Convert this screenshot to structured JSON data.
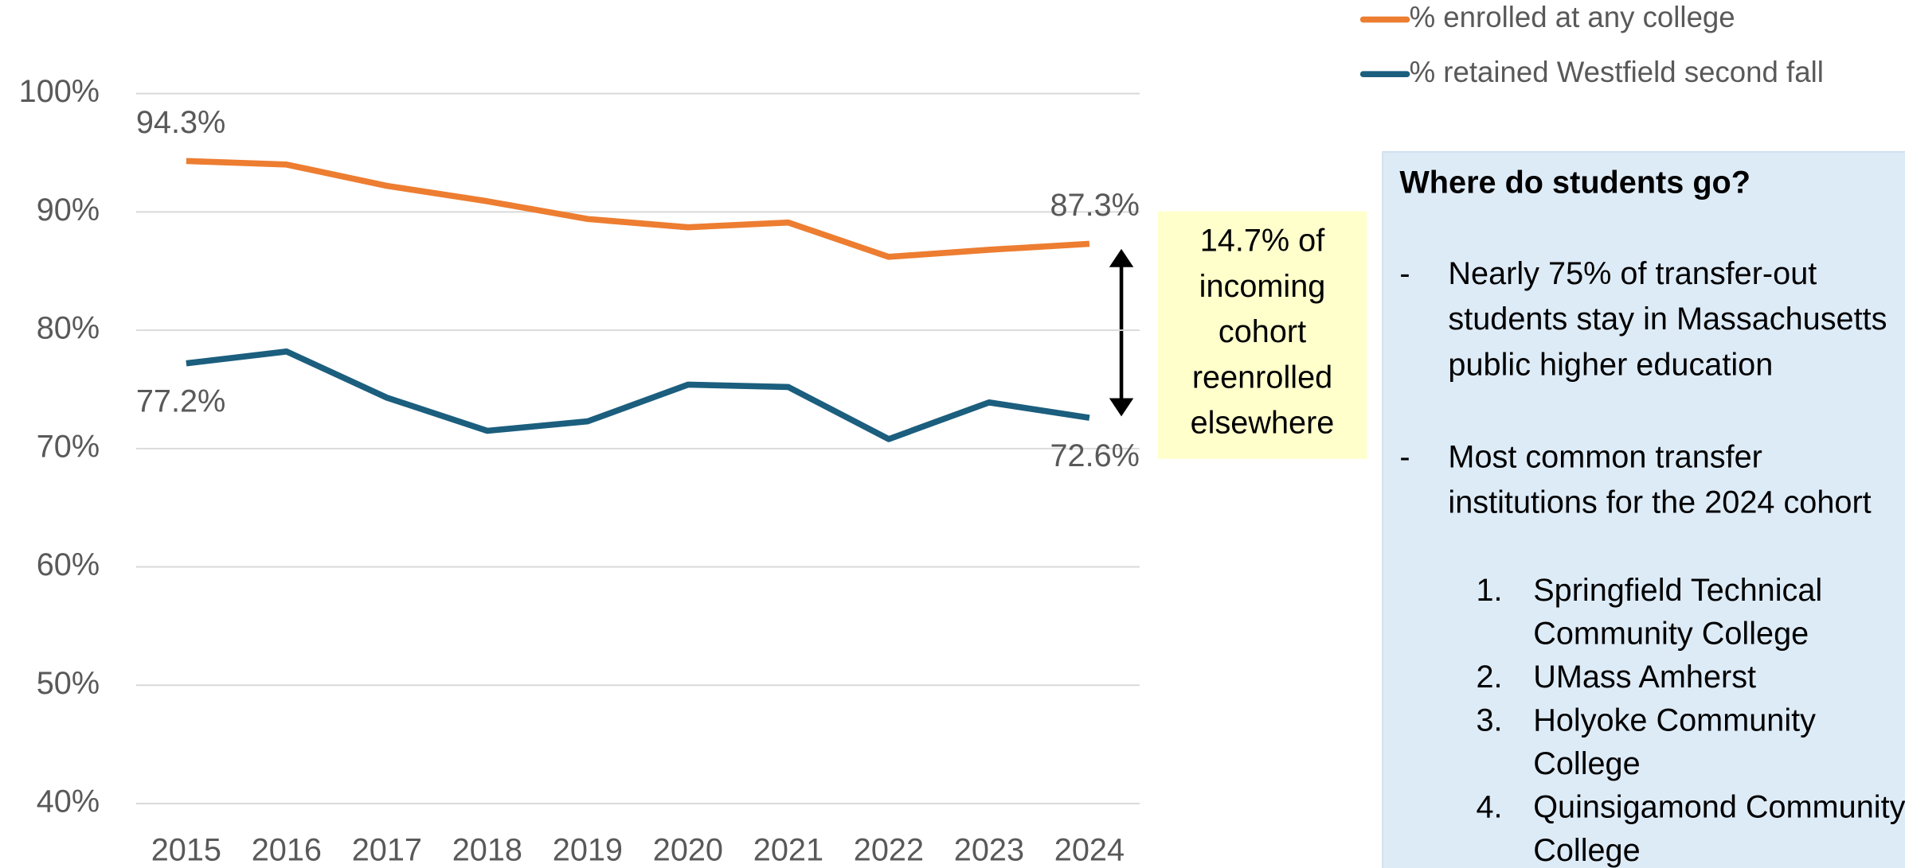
{
  "chart_data": {
    "type": "line",
    "categories": [
      "2015",
      "2016",
      "2017",
      "2018",
      "2019",
      "2020",
      "2021",
      "2022",
      "2023",
      "2024"
    ],
    "series": [
      {
        "name": "% enrolled at any college",
        "color": "#ed7d31",
        "values": [
          94.3,
          94.0,
          92.2,
          90.9,
          89.4,
          88.7,
          89.1,
          86.2,
          86.8,
          87.3
        ],
        "value_labels": [
          "94.3%",
          null,
          null,
          null,
          null,
          null,
          null,
          null,
          null,
          "87.3%"
        ]
      },
      {
        "name": "% retained Westfield second fall",
        "color": "#1b5e7e",
        "values": [
          77.2,
          78.2,
          74.3,
          71.5,
          72.3,
          75.4,
          75.2,
          70.8,
          73.9,
          72.6
        ],
        "value_labels": [
          "77.2%",
          null,
          null,
          null,
          null,
          null,
          null,
          null,
          null,
          "72.6%"
        ]
      }
    ],
    "ylim": [
      40,
      100
    ],
    "yticks": [
      {
        "value": 40,
        "label": "40%"
      },
      {
        "value": 50,
        "label": "50%"
      },
      {
        "value": 60,
        "label": "60%"
      },
      {
        "value": 70,
        "label": "70%"
      },
      {
        "value": 80,
        "label": "80%"
      },
      {
        "value": 90,
        "label": "90%"
      },
      {
        "value": 100,
        "label": "100%"
      }
    ],
    "grid": true,
    "legend": "top-right",
    "annotation": [
      "14.7% of",
      "incoming",
      "cohort",
      "reenrolled",
      "elsewhere"
    ]
  },
  "panel": {
    "title": "Where do students go?",
    "bullets": [
      [
        "Nearly 75% of transfer-out",
        "students stay in Massachusetts",
        "public higher education"
      ],
      [
        "Most common transfer",
        "institutions for the 2024 cohort"
      ]
    ],
    "list": [
      {
        "number": "1.",
        "lines": [
          "Springfield Technical",
          "Community College"
        ]
      },
      {
        "number": "2.",
        "lines": [
          "UMass Amherst"
        ]
      },
      {
        "number": "3.",
        "lines": [
          "Holyoke Community",
          "College"
        ]
      },
      {
        "number": "4.",
        "lines": [
          "Quinsigamond Community",
          "College"
        ]
      }
    ]
  }
}
